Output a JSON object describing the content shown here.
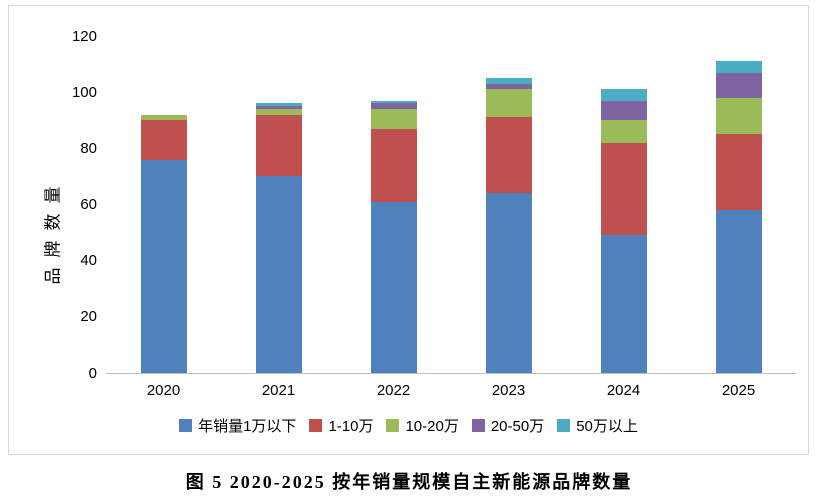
{
  "caption": "图 5 2020-2025 按年销量规模自主新能源品牌数量",
  "chart_data": {
    "type": "bar",
    "stacked": true,
    "title": "图 5 2020-2025 按年销量规模自主新能源品牌数量",
    "ylabel": "品牌数量",
    "xlabel": "",
    "ylim": [
      0,
      120
    ],
    "yticks": [
      0,
      20,
      40,
      60,
      80,
      100,
      120
    ],
    "grid": false,
    "legend_position": "bottom",
    "categories": [
      "2020",
      "2021",
      "2022",
      "2023",
      "2024",
      "2025"
    ],
    "series": [
      {
        "name": "年销量1万以下",
        "color": "#4F81BD",
        "values": [
          76,
          70,
          61,
          64,
          49,
          58
        ]
      },
      {
        "name": "1-10万",
        "color": "#C0504D",
        "values": [
          14,
          22,
          26,
          27,
          33,
          27
        ]
      },
      {
        "name": "10-20万",
        "color": "#9BBB59",
        "values": [
          2,
          2,
          7,
          10,
          8,
          13
        ]
      },
      {
        "name": "20-50万",
        "color": "#8064A2",
        "values": [
          0,
          1,
          2,
          2,
          7,
          9
        ]
      },
      {
        "name": "50万以上",
        "color": "#4BACC6",
        "values": [
          0,
          1,
          1,
          2,
          4,
          4
        ]
      }
    ],
    "totals": [
      92,
      96,
      97,
      105,
      101,
      111
    ]
  }
}
